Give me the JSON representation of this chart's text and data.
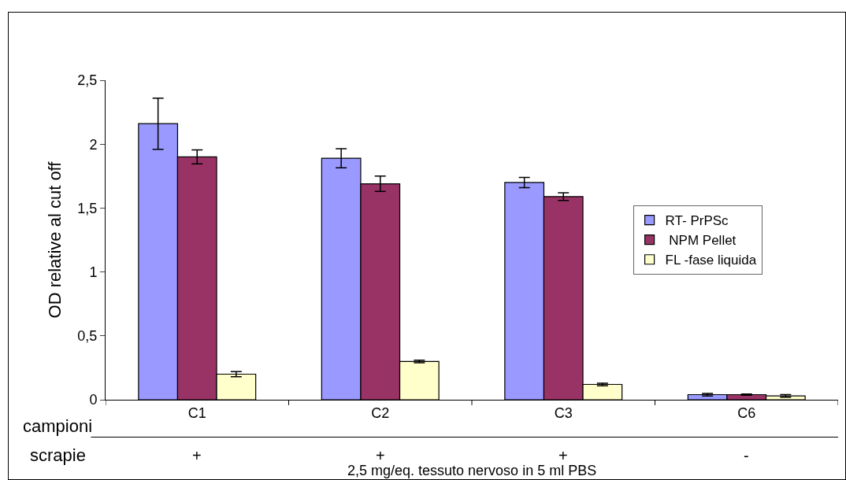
{
  "chart_data": {
    "type": "bar",
    "ylabel": "OD relative al cut off",
    "categories": [
      "C1",
      "C2",
      "C3",
      "C6"
    ],
    "series": [
      {
        "name": "RT- PrPSc",
        "color": "#9999ff",
        "values": [
          2.16,
          1.89,
          1.7,
          0.04
        ],
        "errors": [
          0.2,
          0.075,
          0.04,
          0.01
        ]
      },
      {
        "name": " NPM Pellet",
        "color": "#993366",
        "values": [
          1.9,
          1.69,
          1.59,
          0.04
        ],
        "errors": [
          0.055,
          0.06,
          0.03,
          0.005
        ]
      },
      {
        "name": "FL -fase liquida",
        "color": "#ffffcc",
        "values": [
          0.2,
          0.3,
          0.12,
          0.03
        ],
        "errors": [
          0.02,
          0.01,
          0.01,
          0.01
        ]
      }
    ],
    "ylim": [
      0,
      2.5
    ],
    "yticks": [
      0,
      {
        "value": 0.5,
        "label": "0,5"
      },
      1,
      {
        "value": 1.5,
        "label": "1,5"
      },
      2,
      {
        "value": 2.5,
        "label": "2,5"
      }
    ],
    "grid": false,
    "legend": "right",
    "annotations": [
      "campioni",
      "scrapie",
      "+",
      "+",
      "+",
      "-",
      "2,5 mg/eq. tessuto nervoso in 5 ml PBS"
    ]
  }
}
